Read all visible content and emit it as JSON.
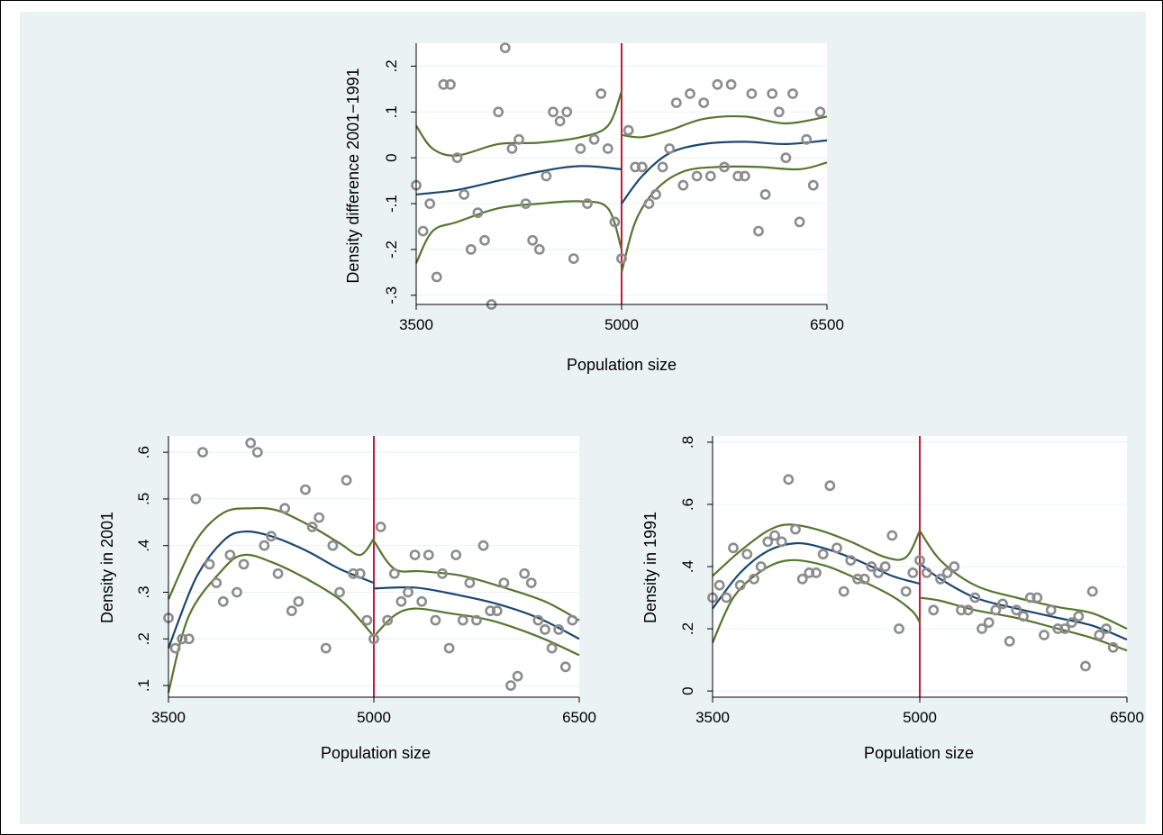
{
  "colors": {
    "background": "#eaf2f3",
    "plot_background": "#ffffff",
    "points": "#8c8c8c",
    "fit": "#1a476f",
    "ci": "#55752f",
    "cutoff": "#c3193a"
  },
  "chart_data": [
    {
      "type": "scatter",
      "title": "",
      "xlabel": "Population size",
      "ylabel": "Density difference 2001−1991",
      "xlim": [
        3500,
        6500
      ],
      "ylim": [
        -0.32,
        0.25
      ],
      "xticks": [
        3500,
        5000,
        6500
      ],
      "xtick_labels": [
        "3500",
        "5000",
        "6500"
      ],
      "yticks": [
        -0.3,
        -0.2,
        -0.1,
        0,
        0.1,
        0.2
      ],
      "ytick_labels": [
        "-.3",
        "-.2",
        "-.1",
        "0",
        ".1",
        ".2"
      ],
      "cutoff": 5000,
      "points": [
        [
          3500,
          -0.06
        ],
        [
          3550,
          -0.16
        ],
        [
          3600,
          -0.1
        ],
        [
          3650,
          -0.26
        ],
        [
          3700,
          0.16
        ],
        [
          3750,
          0.16
        ],
        [
          3800,
          0
        ],
        [
          3850,
          -0.08
        ],
        [
          3900,
          -0.2
        ],
        [
          3950,
          -0.12
        ],
        [
          4000,
          -0.18
        ],
        [
          4050,
          -0.32
        ],
        [
          4100,
          0.1
        ],
        [
          4150,
          0.24
        ],
        [
          4200,
          0.02
        ],
        [
          4250,
          0.04
        ],
        [
          4300,
          -0.1
        ],
        [
          4350,
          -0.18
        ],
        [
          4400,
          -0.2
        ],
        [
          4450,
          -0.04
        ],
        [
          4500,
          0.1
        ],
        [
          4550,
          0.08
        ],
        [
          4600,
          0.1
        ],
        [
          4650,
          -0.22
        ],
        [
          4700,
          0.02
        ],
        [
          4750,
          -0.1
        ],
        [
          4800,
          0.04
        ],
        [
          4850,
          0.14
        ],
        [
          4900,
          0.02
        ],
        [
          4950,
          -0.14
        ],
        [
          5000,
          -0.22
        ],
        [
          5050,
          0.06
        ],
        [
          5100,
          -0.02
        ],
        [
          5150,
          -0.02
        ],
        [
          5200,
          -0.1
        ],
        [
          5250,
          -0.08
        ],
        [
          5300,
          -0.02
        ],
        [
          5350,
          0.02
        ],
        [
          5400,
          0.12
        ],
        [
          5450,
          -0.06
        ],
        [
          5500,
          0.14
        ],
        [
          5550,
          -0.04
        ],
        [
          5600,
          0.12
        ],
        [
          5650,
          -0.04
        ],
        [
          5700,
          0.16
        ],
        [
          5750,
          -0.02
        ],
        [
          5800,
          0.16
        ],
        [
          5850,
          -0.04
        ],
        [
          5900,
          -0.04
        ],
        [
          5950,
          0.14
        ],
        [
          6000,
          -0.16
        ],
        [
          6050,
          -0.08
        ],
        [
          6100,
          0.14
        ],
        [
          6150,
          0.1
        ],
        [
          6200,
          0
        ],
        [
          6250,
          0.14
        ],
        [
          6300,
          -0.14
        ],
        [
          6350,
          0.04
        ],
        [
          6400,
          -0.06
        ],
        [
          6450,
          0.1
        ]
      ],
      "fit_left": [
        [
          3500,
          -0.08
        ],
        [
          3800,
          -0.07
        ],
        [
          4100,
          -0.05
        ],
        [
          4400,
          -0.03
        ],
        [
          4700,
          -0.018
        ],
        [
          5000,
          -0.025
        ]
      ],
      "ci_upper_left": [
        [
          3500,
          0.07
        ],
        [
          3620,
          0.02
        ],
        [
          3800,
          0.005
        ],
        [
          4100,
          0.03
        ],
        [
          4400,
          0.033
        ],
        [
          4700,
          0.045
        ],
        [
          4900,
          0.07
        ],
        [
          5000,
          0.145
        ]
      ],
      "ci_lower_left": [
        [
          3500,
          -0.23
        ],
        [
          3620,
          -0.16
        ],
        [
          3800,
          -0.14
        ],
        [
          4100,
          -0.11
        ],
        [
          4400,
          -0.1
        ],
        [
          4700,
          -0.095
        ],
        [
          4900,
          -0.11
        ],
        [
          5000,
          -0.2
        ]
      ],
      "fit_right": [
        [
          5000,
          -0.1
        ],
        [
          5150,
          -0.04
        ],
        [
          5350,
          0.01
        ],
        [
          5600,
          0.03
        ],
        [
          5900,
          0.035
        ],
        [
          6200,
          0.03
        ],
        [
          6500,
          0.038
        ]
      ],
      "ci_upper_right": [
        [
          5000,
          0.05
        ],
        [
          5150,
          0.045
        ],
        [
          5350,
          0.06
        ],
        [
          5600,
          0.085
        ],
        [
          5900,
          0.09
        ],
        [
          6200,
          0.075
        ],
        [
          6500,
          0.09
        ]
      ],
      "ci_lower_right": [
        [
          5000,
          -0.25
        ],
        [
          5100,
          -0.14
        ],
        [
          5250,
          -0.07
        ],
        [
          5450,
          -0.03
        ],
        [
          5700,
          -0.02
        ],
        [
          6000,
          -0.02
        ],
        [
          6300,
          -0.025
        ],
        [
          6500,
          -0.01
        ]
      ]
    },
    {
      "type": "scatter",
      "title": "",
      "xlabel": "Population size",
      "ylabel": "Density in 2001",
      "xlim": [
        3500,
        6500
      ],
      "ylim": [
        0.075,
        0.635
      ],
      "xticks": [
        3500,
        5000,
        6500
      ],
      "xtick_labels": [
        "3500",
        "5000",
        "6500"
      ],
      "yticks": [
        0.1,
        0.2,
        0.3,
        0.4,
        0.5,
        0.6
      ],
      "ytick_labels": [
        ".1",
        ".2",
        ".3",
        ".4",
        ".5",
        ".6"
      ],
      "cutoff": 5000,
      "points": [
        [
          3500,
          0.245
        ],
        [
          3550,
          0.18
        ],
        [
          3600,
          0.2
        ],
        [
          3650,
          0.2
        ],
        [
          3700,
          0.5
        ],
        [
          3750,
          0.6
        ],
        [
          3800,
          0.36
        ],
        [
          3850,
          0.32
        ],
        [
          3900,
          0.28
        ],
        [
          3950,
          0.38
        ],
        [
          4000,
          0.3
        ],
        [
          4050,
          0.36
        ],
        [
          4100,
          0.62
        ],
        [
          4150,
          0.6
        ],
        [
          4200,
          0.4
        ],
        [
          4250,
          0.42
        ],
        [
          4300,
          0.34
        ],
        [
          4350,
          0.48
        ],
        [
          4400,
          0.26
        ],
        [
          4450,
          0.28
        ],
        [
          4500,
          0.52
        ],
        [
          4550,
          0.44
        ],
        [
          4600,
          0.46
        ],
        [
          4650,
          0.18
        ],
        [
          4700,
          0.4
        ],
        [
          4750,
          0.3
        ],
        [
          4800,
          0.54
        ],
        [
          4850,
          0.34
        ],
        [
          4900,
          0.34
        ],
        [
          4950,
          0.24
        ],
        [
          5000,
          0.2
        ],
        [
          5050,
          0.44
        ],
        [
          5100,
          0.24
        ],
        [
          5150,
          0.34
        ],
        [
          5200,
          0.28
        ],
        [
          5250,
          0.3
        ],
        [
          5300,
          0.38
        ],
        [
          5350,
          0.28
        ],
        [
          5400,
          0.38
        ],
        [
          5450,
          0.24
        ],
        [
          5500,
          0.34
        ],
        [
          5550,
          0.18
        ],
        [
          5600,
          0.38
        ],
        [
          5650,
          0.24
        ],
        [
          5700,
          0.32
        ],
        [
          5750,
          0.24
        ],
        [
          5800,
          0.4
        ],
        [
          5850,
          0.26
        ],
        [
          5900,
          0.26
        ],
        [
          5950,
          0.32
        ],
        [
          6000,
          0.1
        ],
        [
          6050,
          0.12
        ],
        [
          6100,
          0.34
        ],
        [
          6150,
          0.32
        ],
        [
          6200,
          0.24
        ],
        [
          6250,
          0.22
        ],
        [
          6300,
          0.18
        ],
        [
          6350,
          0.22
        ],
        [
          6400,
          0.14
        ],
        [
          6450,
          0.24
        ]
      ],
      "fit_left": [
        [
          3500,
          0.18
        ],
        [
          3700,
          0.33
        ],
        [
          3900,
          0.41
        ],
        [
          4050,
          0.43
        ],
        [
          4250,
          0.42
        ],
        [
          4500,
          0.39
        ],
        [
          4750,
          0.35
        ],
        [
          5000,
          0.32
        ]
      ],
      "ci_upper_left": [
        [
          3500,
          0.285
        ],
        [
          3700,
          0.41
        ],
        [
          3900,
          0.47
        ],
        [
          4100,
          0.48
        ],
        [
          4300,
          0.475
        ],
        [
          4550,
          0.44
        ],
        [
          4750,
          0.405
        ],
        [
          4900,
          0.38
        ],
        [
          5000,
          0.415
        ]
      ],
      "ci_lower_left": [
        [
          3500,
          0.085
        ],
        [
          3650,
          0.25
        ],
        [
          3900,
          0.35
        ],
        [
          4050,
          0.38
        ],
        [
          4250,
          0.365
        ],
        [
          4500,
          0.33
        ],
        [
          4750,
          0.285
        ],
        [
          4900,
          0.24
        ],
        [
          5000,
          0.205
        ]
      ],
      "fit_right": [
        [
          5000,
          0.308
        ],
        [
          5300,
          0.31
        ],
        [
          5600,
          0.295
        ],
        [
          5900,
          0.275
        ],
        [
          6200,
          0.245
        ],
        [
          6500,
          0.2
        ]
      ],
      "ci_upper_right": [
        [
          5000,
          0.41
        ],
        [
          5150,
          0.35
        ],
        [
          5350,
          0.345
        ],
        [
          5650,
          0.335
        ],
        [
          5950,
          0.31
        ],
        [
          6250,
          0.28
        ],
        [
          6500,
          0.24
        ]
      ],
      "ci_lower_right": [
        [
          5000,
          0.205
        ],
        [
          5150,
          0.25
        ],
        [
          5300,
          0.265
        ],
        [
          5550,
          0.255
        ],
        [
          5850,
          0.24
        ],
        [
          6200,
          0.205
        ],
        [
          6500,
          0.165
        ]
      ]
    },
    {
      "type": "scatter",
      "title": "",
      "xlabel": "Population size",
      "ylabel": "Density in 1991",
      "xlim": [
        3500,
        6500
      ],
      "ylim": [
        -0.02,
        0.82
      ],
      "xticks": [
        3500,
        5000,
        6500
      ],
      "xtick_labels": [
        "3500",
        "5000",
        "6500"
      ],
      "yticks": [
        0,
        0.2,
        0.4,
        0.6,
        0.8
      ],
      "ytick_labels": [
        "0",
        ".2",
        ".4",
        ".6",
        ".8"
      ],
      "cutoff": 5000,
      "points": [
        [
          3500,
          0.3
        ],
        [
          3550,
          0.34
        ],
        [
          3600,
          0.3
        ],
        [
          3650,
          0.46
        ],
        [
          3700,
          0.34
        ],
        [
          3750,
          0.44
        ],
        [
          3800,
          0.36
        ],
        [
          3850,
          0.4
        ],
        [
          3900,
          0.48
        ],
        [
          3950,
          0.5
        ],
        [
          4000,
          0.48
        ],
        [
          4050,
          0.68
        ],
        [
          4100,
          0.52
        ],
        [
          4150,
          0.36
        ],
        [
          4200,
          0.38
        ],
        [
          4250,
          0.38
        ],
        [
          4300,
          0.44
        ],
        [
          4350,
          0.66
        ],
        [
          4400,
          0.46
        ],
        [
          4450,
          0.32
        ],
        [
          4500,
          0.42
        ],
        [
          4550,
          0.36
        ],
        [
          4600,
          0.36
        ],
        [
          4650,
          0.4
        ],
        [
          4700,
          0.38
        ],
        [
          4750,
          0.4
        ],
        [
          4800,
          0.5
        ],
        [
          4850,
          0.2
        ],
        [
          4900,
          0.32
        ],
        [
          4950,
          0.38
        ],
        [
          5000,
          0.42
        ],
        [
          5050,
          0.38
        ],
        [
          5100,
          0.26
        ],
        [
          5150,
          0.36
        ],
        [
          5200,
          0.38
        ],
        [
          5250,
          0.4
        ],
        [
          5300,
          0.26
        ],
        [
          5350,
          0.26
        ],
        [
          5400,
          0.3
        ],
        [
          5450,
          0.2
        ],
        [
          5500,
          0.22
        ],
        [
          5550,
          0.26
        ],
        [
          5600,
          0.28
        ],
        [
          5650,
          0.16
        ],
        [
          5700,
          0.26
        ],
        [
          5750,
          0.24
        ],
        [
          5800,
          0.3
        ],
        [
          5850,
          0.3
        ],
        [
          5900,
          0.18
        ],
        [
          5950,
          0.26
        ],
        [
          6000,
          0.2
        ],
        [
          6050,
          0.2
        ],
        [
          6100,
          0.22
        ],
        [
          6150,
          0.24
        ],
        [
          6200,
          0.08
        ],
        [
          6250,
          0.32
        ],
        [
          6300,
          0.18
        ],
        [
          6350,
          0.2
        ],
        [
          6400,
          0.14
        ]
      ],
      "fit_left": [
        [
          3500,
          0.265
        ],
        [
          3700,
          0.38
        ],
        [
          3900,
          0.45
        ],
        [
          4100,
          0.475
        ],
        [
          4300,
          0.46
        ],
        [
          4550,
          0.42
        ],
        [
          4800,
          0.37
        ],
        [
          5000,
          0.345
        ]
      ],
      "ci_upper_left": [
        [
          3500,
          0.37
        ],
        [
          3700,
          0.45
        ],
        [
          3900,
          0.515
        ],
        [
          4050,
          0.535
        ],
        [
          4250,
          0.52
        ],
        [
          4500,
          0.48
        ],
        [
          4750,
          0.43
        ],
        [
          4900,
          0.43
        ],
        [
          5000,
          0.515
        ]
      ],
      "ci_lower_left": [
        [
          3500,
          0.155
        ],
        [
          3650,
          0.3
        ],
        [
          3850,
          0.385
        ],
        [
          4050,
          0.42
        ],
        [
          4300,
          0.405
        ],
        [
          4550,
          0.36
        ],
        [
          4800,
          0.305
        ],
        [
          4950,
          0.255
        ],
        [
          5000,
          0.22
        ]
      ],
      "fit_right": [
        [
          5000,
          0.41
        ],
        [
          5150,
          0.36
        ],
        [
          5400,
          0.3
        ],
        [
          5700,
          0.265
        ],
        [
          6000,
          0.235
        ],
        [
          6250,
          0.21
        ],
        [
          6500,
          0.165
        ]
      ],
      "ci_upper_right": [
        [
          5000,
          0.515
        ],
        [
          5150,
          0.42
        ],
        [
          5400,
          0.34
        ],
        [
          5700,
          0.3
        ],
        [
          6000,
          0.27
        ],
        [
          6250,
          0.25
        ],
        [
          6500,
          0.2
        ]
      ],
      "ci_lower_right": [
        [
          5000,
          0.3
        ],
        [
          5150,
          0.29
        ],
        [
          5400,
          0.26
        ],
        [
          5700,
          0.235
        ],
        [
          6000,
          0.2
        ],
        [
          6250,
          0.17
        ],
        [
          6500,
          0.13
        ]
      ]
    }
  ]
}
